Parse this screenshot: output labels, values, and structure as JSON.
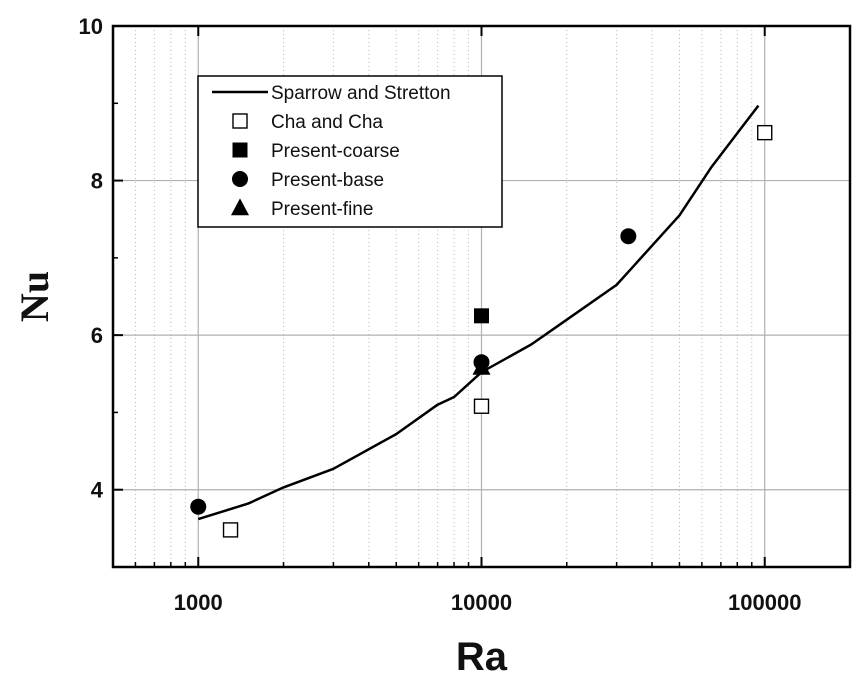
{
  "chart_data": {
    "type": "scatter",
    "xlabel": "Ra",
    "ylabel": "Nu",
    "x_scale": "log",
    "xlim": [
      500,
      200000
    ],
    "ylim": [
      3,
      10
    ],
    "x_ticks": [
      1000,
      10000,
      100000
    ],
    "x_tick_labels": [
      "1000",
      "10000",
      "100000"
    ],
    "y_ticks": [
      4,
      6,
      8,
      10
    ],
    "y_tick_labels": [
      "4",
      "6",
      "8",
      "10"
    ],
    "grid": true,
    "legend_position": "top-left",
    "series": [
      {
        "name": "Sparrow and Stretton",
        "style": "line",
        "color": "#000000",
        "x": [
          1000,
          1500,
          2000,
          3000,
          5000,
          7000,
          8000,
          10000,
          15000,
          20000,
          30000,
          50000,
          65000,
          95000
        ],
        "y": [
          3.62,
          3.82,
          4.03,
          4.27,
          4.72,
          5.1,
          5.2,
          5.52,
          5.88,
          6.2,
          6.65,
          7.55,
          8.18,
          8.97
        ]
      },
      {
        "name": "Cha and Cha",
        "marker": "square-open",
        "color": "#000000",
        "x": [
          1300,
          10000,
          100000
        ],
        "y": [
          3.48,
          5.08,
          8.62
        ]
      },
      {
        "name": "Present-coarse",
        "marker": "square-filled",
        "color": "#000000",
        "x": [
          10000
        ],
        "y": [
          6.25
        ]
      },
      {
        "name": "Present-base",
        "marker": "circle-filled",
        "color": "#000000",
        "x": [
          1000,
          10000,
          33000
        ],
        "y": [
          3.78,
          5.65,
          7.28
        ]
      },
      {
        "name": "Present-fine",
        "marker": "triangle-filled",
        "color": "#000000",
        "x": [
          10000
        ],
        "y": [
          5.58
        ]
      }
    ]
  }
}
